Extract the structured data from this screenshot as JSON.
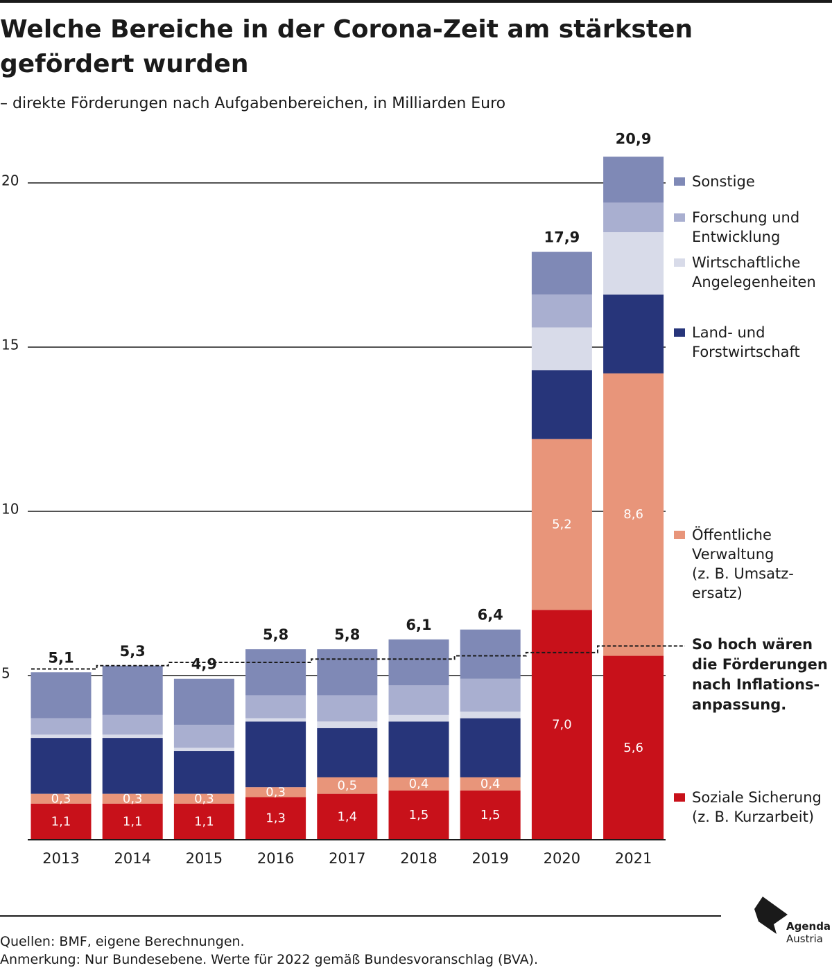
{
  "title": "Welche Bereiche in der Corona-Zeit am stärksten gefördert wurden",
  "subtitle": "– direkte Förderungen nach Aufgabenbereichen, in Milliarden Euro",
  "source": "Quellen: BMF, eigene Berechnungen.",
  "note": "Anmerkung: Nur Bundesebene. Werte für 2022 gemäß Bundesvoranschlag (BVA).",
  "logo": {
    "line1": "Agenda",
    "line2": "Austria"
  },
  "colors": {
    "soziale": "#c8111a",
    "oeffentliche": "#e8957a",
    "land": "#27357a",
    "wirtschaft": "#d8dbe9",
    "forschung": "#a9afd0",
    "sonstige": "#7f89b6",
    "text": "#1a1a1a"
  },
  "chart_data": {
    "type": "bar",
    "stacked": true,
    "categories": [
      "2013",
      "2014",
      "2015",
      "2016",
      "2017",
      "2018",
      "2019",
      "2020",
      "2021"
    ],
    "ylim": [
      0,
      21
    ],
    "yticks": [
      5,
      10,
      15,
      20
    ],
    "grid": true,
    "legend_position": "right",
    "totals": [
      5.1,
      5.3,
      4.9,
      5.8,
      5.8,
      6.1,
      6.4,
      17.9,
      20.9
    ],
    "total_labels": [
      "5,1",
      "5,3",
      "4,9",
      "5,8",
      "5,8",
      "6,1",
      "6,4",
      "17,9",
      "20,9"
    ],
    "series": [
      {
        "key": "soziale",
        "name": "Soziale Sicherung (z. B. Kurzarbeit)",
        "legend_lines": [
          "Soziale Sicherung",
          "(z. B. Kurzarbeit)"
        ],
        "values": [
          1.1,
          1.1,
          1.1,
          1.3,
          1.4,
          1.5,
          1.5,
          7.0,
          5.6
        ],
        "labels": [
          "1,1",
          "1,1",
          "1,1",
          "1,3",
          "1,4",
          "1,5",
          "1,5",
          "7,0",
          "5,6"
        ]
      },
      {
        "key": "oeffentliche",
        "name": "Öffentliche Verwaltung (z. B. Umsatzersatz)",
        "legend_lines": [
          "Öffentliche",
          "Verwaltung",
          "(z. B. Umsatz-",
          "ersatz)"
        ],
        "values": [
          0.3,
          0.3,
          0.3,
          0.3,
          0.5,
          0.4,
          0.4,
          5.2,
          8.6
        ],
        "labels": [
          "0,3",
          "0,3",
          "0,3",
          "0,3",
          "0,5",
          "0,4",
          "0,4",
          "5,2",
          "8,6"
        ]
      },
      {
        "key": "land",
        "name": "Land- und Forstwirtschaft",
        "legend_lines": [
          "Land- und",
          "Forstwirtschaft"
        ],
        "values": [
          1.7,
          1.7,
          1.3,
          2.0,
          1.5,
          1.7,
          1.8,
          2.1,
          2.4
        ]
      },
      {
        "key": "wirtschaft",
        "name": "Wirtschaftliche Angelegenheiten",
        "legend_lines": [
          "Wirtschaftliche",
          "Angelegenheiten"
        ],
        "values": [
          0.1,
          0.1,
          0.1,
          0.1,
          0.2,
          0.2,
          0.2,
          1.3,
          1.9
        ]
      },
      {
        "key": "forschung",
        "name": "Forschung und Entwicklung",
        "legend_lines": [
          "Forschung und",
          "Entwicklung"
        ],
        "values": [
          0.5,
          0.6,
          0.7,
          0.7,
          0.8,
          0.9,
          1.0,
          1.0,
          0.9
        ]
      },
      {
        "key": "sonstige",
        "name": "Sonstige",
        "legend_lines": [
          "Sonstige"
        ],
        "values": [
          1.4,
          1.5,
          1.4,
          1.4,
          1.4,
          1.4,
          1.5,
          1.3,
          1.4
        ]
      }
    ],
    "inflation_adjusted": {
      "label_lines": [
        "So hoch wären",
        "die Förderungen",
        "nach Inflations-",
        "anpassung."
      ],
      "values": [
        5.2,
        5.3,
        5.4,
        5.4,
        5.5,
        5.5,
        5.6,
        5.7,
        5.9
      ]
    }
  }
}
